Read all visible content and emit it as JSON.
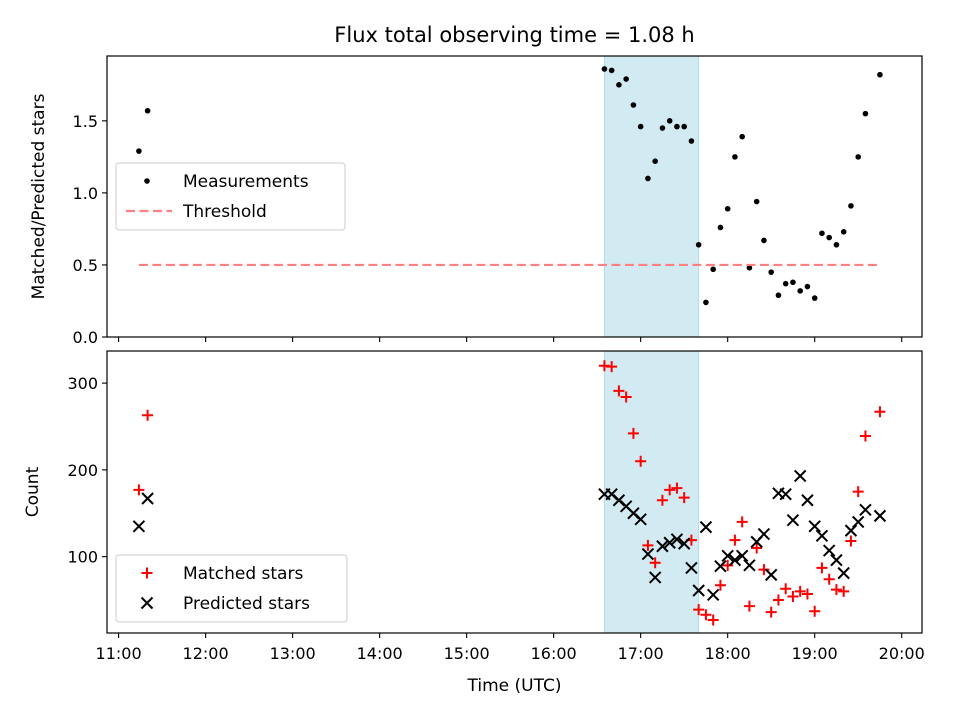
{
  "figure": {
    "title": "Flux total observing time = 1.08 h",
    "xlabel": "Time (UTC)"
  },
  "chart_data": [
    {
      "type": "scatter",
      "ylabel": "Matched/Predicted stars",
      "xlim": [
        "10:52",
        "20:14"
      ],
      "ylim": [
        0,
        1.95
      ],
      "yticks": [
        0.0,
        0.5,
        1.0,
        1.5
      ],
      "ytick_labels": [
        "0.0",
        "0.5",
        "1.0",
        "1.5"
      ],
      "highlight_span": {
        "x0": "16:35",
        "x1": "17:40",
        "color": "#add8e6"
      },
      "legend_position": "center-left",
      "series": [
        {
          "name": "Measurements",
          "marker": "dot",
          "color": "#000000",
          "points": [
            {
              "t": "11:14",
              "y": 1.29
            },
            {
              "t": "11:20",
              "y": 1.57
            },
            {
              "t": "16:35",
              "y": 1.86
            },
            {
              "t": "16:40",
              "y": 1.85
            },
            {
              "t": "16:45",
              "y": 1.75
            },
            {
              "t": "16:50",
              "y": 1.79
            },
            {
              "t": "16:55",
              "y": 1.61
            },
            {
              "t": "17:00",
              "y": 1.46
            },
            {
              "t": "17:05",
              "y": 1.1
            },
            {
              "t": "17:10",
              "y": 1.22
            },
            {
              "t": "17:15",
              "y": 1.45
            },
            {
              "t": "17:20",
              "y": 1.5
            },
            {
              "t": "17:25",
              "y": 1.46
            },
            {
              "t": "17:30",
              "y": 1.46
            },
            {
              "t": "17:35",
              "y": 1.36
            },
            {
              "t": "17:40",
              "y": 0.64
            },
            {
              "t": "17:45",
              "y": 0.24
            },
            {
              "t": "17:50",
              "y": 0.47
            },
            {
              "t": "17:55",
              "y": 0.76
            },
            {
              "t": "18:00",
              "y": 0.89
            },
            {
              "t": "18:05",
              "y": 1.25
            },
            {
              "t": "18:10",
              "y": 1.39
            },
            {
              "t": "18:15",
              "y": 0.48
            },
            {
              "t": "18:20",
              "y": 0.94
            },
            {
              "t": "18:25",
              "y": 0.67
            },
            {
              "t": "18:30",
              "y": 0.45
            },
            {
              "t": "18:35",
              "y": 0.29
            },
            {
              "t": "18:40",
              "y": 0.37
            },
            {
              "t": "18:45",
              "y": 0.38
            },
            {
              "t": "18:50",
              "y": 0.32
            },
            {
              "t": "18:55",
              "y": 0.35
            },
            {
              "t": "19:00",
              "y": 0.27
            },
            {
              "t": "19:05",
              "y": 0.72
            },
            {
              "t": "19:10",
              "y": 0.69
            },
            {
              "t": "19:15",
              "y": 0.64
            },
            {
              "t": "19:20",
              "y": 0.73
            },
            {
              "t": "19:25",
              "y": 0.91
            },
            {
              "t": "19:30",
              "y": 1.25
            },
            {
              "t": "19:35",
              "y": 1.55
            },
            {
              "t": "19:45",
              "y": 1.82
            }
          ]
        },
        {
          "name": "Threshold",
          "marker": "dashed-line",
          "color": "#ff8080",
          "points": [
            {
              "t": "11:14",
              "y": 0.5
            },
            {
              "t": "19:45",
              "y": 0.5
            }
          ]
        }
      ]
    },
    {
      "type": "scatter",
      "ylabel": "Count",
      "xlim": [
        "10:52",
        "20:14"
      ],
      "ylim": [
        12,
        337
      ],
      "yticks": [
        100,
        200,
        300
      ],
      "ytick_labels": [
        "100",
        "200",
        "300"
      ],
      "xticks": [
        "11:00",
        "12:00",
        "13:00",
        "14:00",
        "15:00",
        "16:00",
        "17:00",
        "18:00",
        "19:00",
        "20:00"
      ],
      "highlight_span": {
        "x0": "16:35",
        "x1": "17:40",
        "color": "#add8e6"
      },
      "legend_position": "lower-left",
      "series": [
        {
          "name": "Matched stars",
          "marker": "plus",
          "color": "#ff0000",
          "points": [
            {
              "t": "11:14",
              "y": 177
            },
            {
              "t": "11:20",
              "y": 263
            },
            {
              "t": "16:35",
              "y": 320
            },
            {
              "t": "16:40",
              "y": 319
            },
            {
              "t": "16:45",
              "y": 291
            },
            {
              "t": "16:50",
              "y": 284
            },
            {
              "t": "16:55",
              "y": 242
            },
            {
              "t": "17:00",
              "y": 210
            },
            {
              "t": "17:05",
              "y": 113
            },
            {
              "t": "17:10",
              "y": 93
            },
            {
              "t": "17:15",
              "y": 165
            },
            {
              "t": "17:20",
              "y": 177
            },
            {
              "t": "17:25",
              "y": 179
            },
            {
              "t": "17:30",
              "y": 168
            },
            {
              "t": "17:35",
              "y": 119
            },
            {
              "t": "17:40",
              "y": 39
            },
            {
              "t": "17:45",
              "y": 33
            },
            {
              "t": "17:50",
              "y": 27
            },
            {
              "t": "17:55",
              "y": 67
            },
            {
              "t": "18:00",
              "y": 90
            },
            {
              "t": "18:05",
              "y": 119
            },
            {
              "t": "18:10",
              "y": 140
            },
            {
              "t": "18:15",
              "y": 43
            },
            {
              "t": "18:20",
              "y": 110
            },
            {
              "t": "18:25",
              "y": 85
            },
            {
              "t": "18:30",
              "y": 36
            },
            {
              "t": "18:35",
              "y": 50
            },
            {
              "t": "18:40",
              "y": 63
            },
            {
              "t": "18:45",
              "y": 54
            },
            {
              "t": "18:50",
              "y": 60
            },
            {
              "t": "18:55",
              "y": 57
            },
            {
              "t": "19:00",
              "y": 37
            },
            {
              "t": "19:05",
              "y": 87
            },
            {
              "t": "19:10",
              "y": 74
            },
            {
              "t": "19:15",
              "y": 62
            },
            {
              "t": "19:20",
              "y": 60
            },
            {
              "t": "19:25",
              "y": 118
            },
            {
              "t": "19:30",
              "y": 175
            },
            {
              "t": "19:35",
              "y": 239
            },
            {
              "t": "19:45",
              "y": 267
            }
          ]
        },
        {
          "name": "Predicted stars",
          "marker": "x",
          "color": "#000000",
          "points": [
            {
              "t": "11:14",
              "y": 135
            },
            {
              "t": "11:20",
              "y": 167
            },
            {
              "t": "16:35",
              "y": 172
            },
            {
              "t": "16:40",
              "y": 172
            },
            {
              "t": "16:45",
              "y": 165
            },
            {
              "t": "16:50",
              "y": 158
            },
            {
              "t": "16:55",
              "y": 150
            },
            {
              "t": "17:00",
              "y": 143
            },
            {
              "t": "17:05",
              "y": 103
            },
            {
              "t": "17:10",
              "y": 76
            },
            {
              "t": "17:15",
              "y": 112
            },
            {
              "t": "17:20",
              "y": 116
            },
            {
              "t": "17:25",
              "y": 120
            },
            {
              "t": "17:30",
              "y": 115
            },
            {
              "t": "17:35",
              "y": 87
            },
            {
              "t": "17:40",
              "y": 61
            },
            {
              "t": "17:45",
              "y": 134
            },
            {
              "t": "17:50",
              "y": 56
            },
            {
              "t": "17:55",
              "y": 89
            },
            {
              "t": "18:00",
              "y": 101
            },
            {
              "t": "18:05",
              "y": 96
            },
            {
              "t": "18:10",
              "y": 101
            },
            {
              "t": "18:15",
              "y": 90
            },
            {
              "t": "18:20",
              "y": 117
            },
            {
              "t": "18:25",
              "y": 126
            },
            {
              "t": "18:30",
              "y": 79
            },
            {
              "t": "18:35",
              "y": 173
            },
            {
              "t": "18:40",
              "y": 172
            },
            {
              "t": "18:45",
              "y": 142
            },
            {
              "t": "18:50",
              "y": 193
            },
            {
              "t": "18:55",
              "y": 165
            },
            {
              "t": "19:00",
              "y": 135
            },
            {
              "t": "19:05",
              "y": 124
            },
            {
              "t": "19:10",
              "y": 107
            },
            {
              "t": "19:15",
              "y": 96
            },
            {
              "t": "19:20",
              "y": 81
            },
            {
              "t": "19:25",
              "y": 130
            },
            {
              "t": "19:30",
              "y": 140
            },
            {
              "t": "19:35",
              "y": 154
            },
            {
              "t": "19:45",
              "y": 147
            }
          ]
        }
      ]
    }
  ]
}
